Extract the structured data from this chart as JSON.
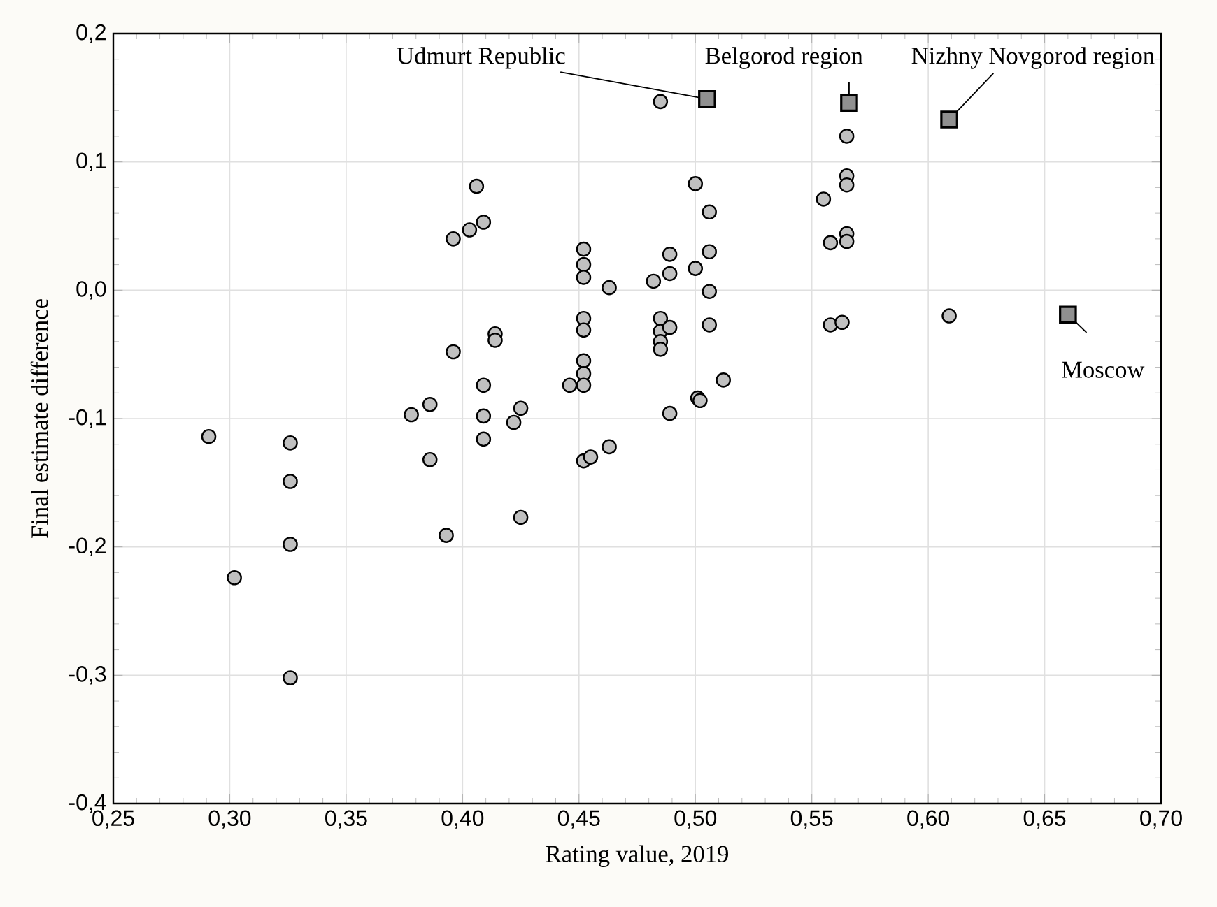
{
  "chart_data": {
    "type": "scatter",
    "xlabel": "Rating value, 2019",
    "ylabel": "Final estimate difference",
    "xlim": [
      0.25,
      0.7
    ],
    "ylim": [
      -0.4,
      0.2
    ],
    "xticks": [
      {
        "value": 0.25,
        "label": "0,25"
      },
      {
        "value": 0.3,
        "label": "0,30"
      },
      {
        "value": 0.35,
        "label": "0,35"
      },
      {
        "value": 0.4,
        "label": "0,40"
      },
      {
        "value": 0.45,
        "label": "0,45"
      },
      {
        "value": 0.5,
        "label": "0,50"
      },
      {
        "value": 0.55,
        "label": "0,55"
      },
      {
        "value": 0.6,
        "label": "0,60"
      },
      {
        "value": 0.65,
        "label": "0,65"
      },
      {
        "value": 0.7,
        "label": "0,70"
      }
    ],
    "yticks": [
      {
        "value": -0.4,
        "label": "-0,4"
      },
      {
        "value": -0.3,
        "label": "-0,3"
      },
      {
        "value": -0.2,
        "label": "-0,2"
      },
      {
        "value": -0.1,
        "label": "-0,1"
      },
      {
        "value": 0.0,
        "label": "0,0"
      },
      {
        "value": 0.1,
        "label": "0,1"
      },
      {
        "value": 0.2,
        "label": "0,2"
      }
    ],
    "grid": true,
    "series": [
      {
        "color": "#c0c0c0",
        "marker": "circle",
        "x": [
          0.291,
          0.302,
          0.326,
          0.326,
          0.326,
          0.326,
          0.378,
          0.386,
          0.386,
          0.393,
          0.396,
          0.396,
          0.403,
          0.406,
          0.409,
          0.409,
          0.409,
          0.409,
          0.414,
          0.414,
          0.422,
          0.425,
          0.425,
          0.446,
          0.452,
          0.452,
          0.452,
          0.452,
          0.452,
          0.452,
          0.452,
          0.452,
          0.452,
          0.455,
          0.463,
          0.463,
          0.482,
          0.485,
          0.485,
          0.485,
          0.485,
          0.485,
          0.489,
          0.489,
          0.489,
          0.489,
          0.5,
          0.5,
          0.501,
          0.502,
          0.506,
          0.506,
          0.506,
          0.506,
          0.512,
          0.555,
          0.558,
          0.558,
          0.563,
          0.565,
          0.565,
          0.565,
          0.565,
          0.565,
          0.609
        ],
        "values": [
          -0.114,
          -0.224,
          -0.119,
          -0.149,
          -0.198,
          -0.302,
          -0.097,
          -0.089,
          -0.132,
          -0.191,
          0.04,
          -0.048,
          0.047,
          0.081,
          0.053,
          -0.074,
          -0.098,
          -0.116,
          -0.034,
          -0.039,
          -0.103,
          -0.092,
          -0.177,
          -0.074,
          0.032,
          0.02,
          0.01,
          -0.022,
          -0.031,
          -0.055,
          -0.065,
          -0.074,
          -0.133,
          -0.13,
          0.002,
          -0.122,
          0.007,
          0.147,
          -0.022,
          -0.032,
          -0.04,
          -0.046,
          0.028,
          0.013,
          -0.029,
          -0.096,
          0.083,
          0.017,
          -0.084,
          -0.086,
          0.061,
          0.03,
          -0.001,
          -0.027,
          -0.07,
          0.071,
          0.037,
          -0.027,
          -0.025,
          0.12,
          0.089,
          0.082,
          0.044,
          0.038,
          -0.02
        ]
      },
      {
        "color": "#909090",
        "marker": "square",
        "x": [
          0.505,
          0.566,
          0.609,
          0.66
        ],
        "values": [
          0.149,
          0.146,
          0.133,
          -0.019
        ]
      }
    ],
    "annotations": [
      {
        "text": "Udmurt Republic",
        "x": 0.505,
        "y": 0.149
      },
      {
        "text": "Belgorod region",
        "x": 0.566,
        "y": 0.146
      },
      {
        "text": "Nizhny Novgorod region",
        "x": 0.609,
        "y": 0.133
      },
      {
        "text": "Moscow",
        "x": 0.66,
        "y": -0.019
      }
    ]
  }
}
